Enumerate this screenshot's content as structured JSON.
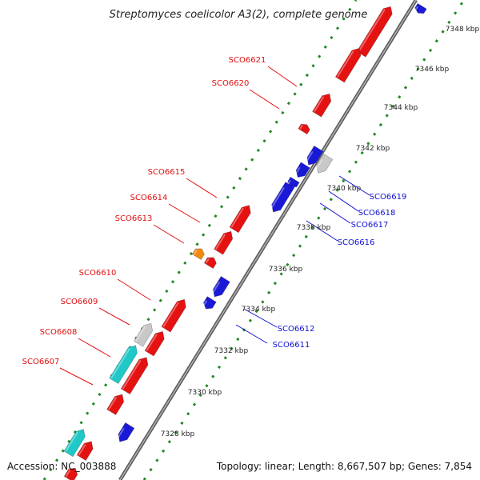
{
  "title": "Streptomyces coelicolor A3(2), complete genome",
  "footer": {
    "accession": "Accession: NC_003888",
    "topology": "Topology: linear; Length: 8,667,507 bp; Genes: 7,854"
  },
  "colors": {
    "axis": "#8c8c8c",
    "tick": "#22881f",
    "red": "#e51212",
    "blue": "#1a1ad6",
    "cyan": "#20c8c8",
    "gray": "#c8c8c8",
    "orange": "#f28a10",
    "red_label": "#e01010",
    "blue_label": "#1010d0"
  },
  "scale_labels": [
    "7328 kbp",
    "7330 kbp",
    "7332 kbp",
    "7334 kbp",
    "7336 kbp",
    "7338 kbp",
    "7340 kbp",
    "7342 kbp",
    "7344 kbp",
    "7346 kbp",
    "7348 kbp"
  ],
  "forward_labels": [
    "SCO6621",
    "SCO6620",
    "SCO6615",
    "SCO6614",
    "SCO6613",
    "SCO6610",
    "SCO6609",
    "SCO6608",
    "SCO6607"
  ],
  "reverse_labels": [
    "SCO6619",
    "SCO6618",
    "SCO6617",
    "SCO6616",
    "SCO6612",
    "SCO6611"
  ]
}
